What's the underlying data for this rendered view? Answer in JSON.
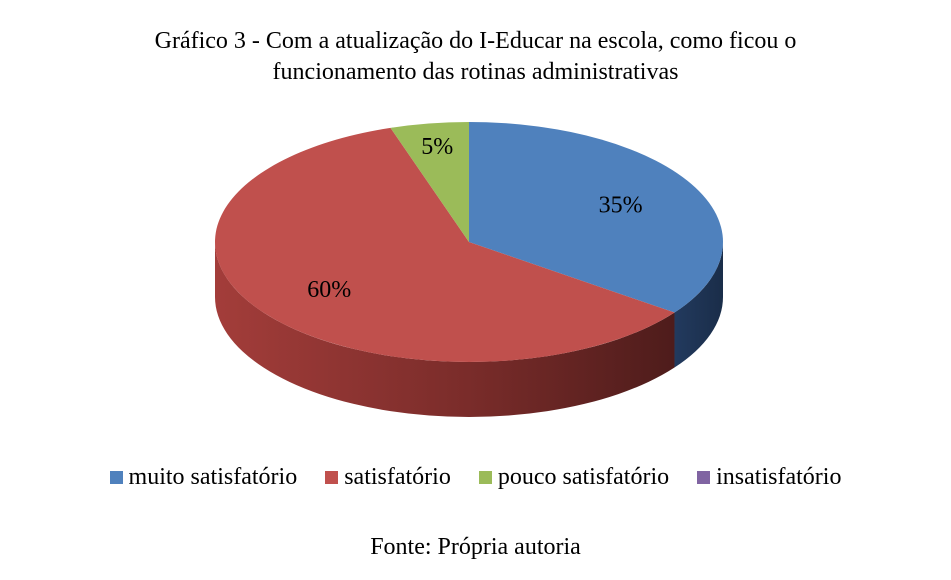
{
  "chart_data": {
    "type": "pie",
    "title_line1": "Gráfico 3 - Com a atualização do I-Educar na escola, como ficou o",
    "title_line2": "funcionamento das rotinas administrativas",
    "categories": [
      "muito satisfatório",
      "satisfatório",
      "pouco satisfatório",
      "insatisfatório"
    ],
    "values": [
      35,
      60,
      5,
      0
    ],
    "data_labels": [
      "35%",
      "60%",
      "5%",
      ""
    ],
    "colors": [
      "#4F81BD",
      "#C0504D",
      "#9BBB59",
      "#8064A2"
    ],
    "legend_position": "bottom",
    "style": "3d"
  },
  "legend": {
    "items": [
      {
        "label": "muito satisfatório",
        "color": "#4F81BD"
      },
      {
        "label": "satisfatório",
        "color": "#C0504D"
      },
      {
        "label": "pouco satisfatório",
        "color": "#9BBB59"
      },
      {
        "label": "insatisfatório",
        "color": "#8064A2"
      }
    ]
  },
  "source": "Fonte: Própria autoria"
}
